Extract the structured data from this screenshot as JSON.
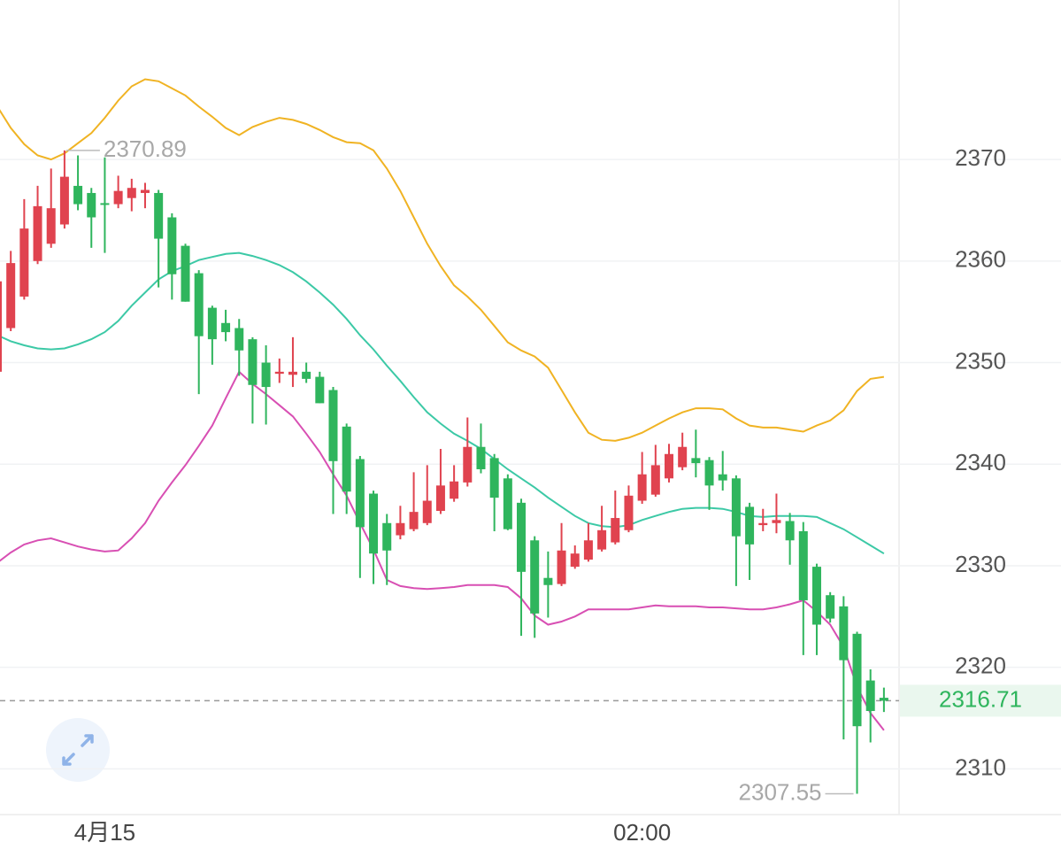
{
  "chart_data": {
    "type": "candlestick",
    "categories": [
      null,
      null,
      null,
      null,
      null,
      null,
      null,
      null,
      "4月15",
      null,
      null,
      null,
      null,
      null,
      null,
      null,
      null,
      null,
      null,
      null,
      null,
      null,
      null,
      null,
      null,
      null,
      null,
      null,
      null,
      null,
      null,
      null,
      null,
      null,
      null,
      null,
      null,
      null,
      null,
      null,
      null,
      null,
      null,
      null,
      null,
      null,
      null,
      null,
      "02:00",
      null,
      null,
      null,
      null,
      null,
      null,
      null,
      null,
      null,
      null,
      null,
      null,
      null,
      null,
      null,
      null,
      null,
      null
    ],
    "open": [
      2349.1,
      2353.4,
      2356.5,
      2360.0,
      2361.7,
      2363.6,
      2367.4,
      2366.7,
      2365.7,
      2365.6,
      2366.2,
      2366.7,
      2366.7,
      2364.3,
      2361.5,
      2358.8,
      2355.4,
      2353.9,
      2353.4,
      2352.3,
      2350.0,
      2348.9,
      2348.8,
      2349.1,
      2348.6,
      2347.3,
      2343.7,
      2340.5,
      2337.1,
      2334.2,
      2333.0,
      2333.6,
      2334.2,
      2335.4,
      2336.6,
      2338.2,
      2341.7,
      2340.6,
      2338.6,
      2336.2,
      2332.5,
      2328.8,
      2328.2,
      2329.9,
      2330.6,
      2331.6,
      2332.3,
      2333.5,
      2336.4,
      2337.0,
      2338.6,
      2339.7,
      2340.6,
      2340.4,
      2339.0,
      2338.6,
      2335.8,
      2334.0,
      2334.2,
      2334.4,
      2333.4,
      2329.9,
      2327.1,
      2326.0,
      2323.3,
      2318.7,
      2317.0
    ],
    "high": [
      2359.5,
      2361.0,
      2366.1,
      2367.4,
      2369.1,
      2370.89,
      2370.4,
      2367.2,
      2370.2,
      2368.4,
      2368.1,
      2367.7,
      2367.0,
      2364.7,
      2361.7,
      2359.1,
      2355.6,
      2355.2,
      2354.3,
      2352.5,
      2351.7,
      2350.4,
      2352.5,
      2350.0,
      2349.1,
      2347.6,
      2344.0,
      2340.8,
      2337.4,
      2335.1,
      2335.9,
      2339.2,
      2339.9,
      2341.5,
      2339.9,
      2344.6,
      2344.0,
      2341.0,
      2339.0,
      2336.6,
      2332.9,
      2331.4,
      2334.2,
      2332.0,
      2334.2,
      2335.9,
      2337.4,
      2337.9,
      2341.2,
      2341.9,
      2342.0,
      2343.1,
      2343.4,
      2340.7,
      2341.3,
      2338.9,
      2336.2,
      2335.6,
      2337.1,
      2335.2,
      2334.3,
      2330.2,
      2327.4,
      2327.0,
      2323.5,
      2319.8,
      2318.0
    ],
    "low": [
      2348.6,
      2353.1,
      2356.2,
      2359.7,
      2361.3,
      2363.2,
      2365.0,
      2361.3,
      2360.8,
      2365.2,
      2364.9,
      2365.2,
      2357.4,
      2356.2,
      2356.0,
      2346.9,
      2349.8,
      2352.1,
      2348.7,
      2344.0,
      2343.9,
      2348.0,
      2347.6,
      2348.0,
      2346.0,
      2335.1,
      2335.1,
      2328.8,
      2328.2,
      2328.1,
      2332.6,
      2333.4,
      2334.0,
      2335.1,
      2336.3,
      2337.8,
      2339.1,
      2333.4,
      2333.5,
      2323.1,
      2322.9,
      2324.9,
      2328.0,
      2329.7,
      2330.4,
      2331.4,
      2332.1,
      2333.3,
      2336.1,
      2336.8,
      2338.2,
      2339.4,
      2338.7,
      2335.5,
      2337.4,
      2328.0,
      2328.6,
      2333.4,
      2333.2,
      2330.1,
      2321.2,
      2321.2,
      2324.4,
      2312.9,
      2307.55,
      2312.6,
      2315.6
    ],
    "close": [
      2358.0,
      2359.8,
      2363.2,
      2365.4,
      2365.2,
      2368.3,
      2365.6,
      2364.3,
      2365.6,
      2366.9,
      2367.2,
      2367.0,
      2362.2,
      2358.7,
      2356.0,
      2352.6,
      2352.3,
      2353.0,
      2351.2,
      2347.8,
      2347.6,
      2349.1,
      2349.1,
      2348.4,
      2346.0,
      2340.3,
      2337.3,
      2333.8,
      2331.2,
      2331.5,
      2334.2,
      2335.3,
      2336.4,
      2337.9,
      2338.3,
      2341.7,
      2339.5,
      2336.7,
      2333.6,
      2329.4,
      2325.3,
      2328.1,
      2331.5,
      2331.2,
      2332.5,
      2333.5,
      2334.7,
      2336.9,
      2339.0,
      2339.9,
      2341.0,
      2341.7,
      2340.1,
      2337.9,
      2338.4,
      2332.9,
      2332.1,
      2334.2,
      2334.5,
      2332.5,
      2326.6,
      2324.2,
      2324.8,
      2320.7,
      2314.2,
      2315.7,
      2316.71
    ],
    "up_color": "#e0434f",
    "down_color": "#2fb55d",
    "series": [
      {
        "color": "#f0b323",
        "values": [
          2375.2,
          2373.1,
          2371.5,
          2370.4,
          2370.0,
          2370.6,
          2371.6,
          2372.6,
          2374.1,
          2375.8,
          2377.2,
          2377.9,
          2377.7,
          2377.0,
          2376.3,
          2375.2,
          2374.2,
          2373.1,
          2372.4,
          2373.2,
          2373.7,
          2374.1,
          2373.9,
          2373.5,
          2372.9,
          2372.2,
          2371.7,
          2371.6,
          2370.9,
          2369.1,
          2366.9,
          2364.3,
          2361.7,
          2359.5,
          2357.6,
          2356.5,
          2355.2,
          2353.6,
          2352.0,
          2351.2,
          2350.6,
          2349.5,
          2347.3,
          2345.1,
          2343.1,
          2342.4,
          2342.3,
          2342.6,
          2343.1,
          2343.8,
          2344.5,
          2345.1,
          2345.5,
          2345.5,
          2345.4,
          2344.5,
          2343.8,
          2343.6,
          2343.6,
          2343.4,
          2343.2,
          2343.8,
          2344.3,
          2345.3,
          2347.2,
          2348.4,
          2348.6
        ]
      },
      {
        "color": "#3cc9a6",
        "values": [
          2352.7,
          2352.1,
          2351.7,
          2351.4,
          2351.3,
          2351.4,
          2351.8,
          2352.3,
          2353.0,
          2354.1,
          2355.6,
          2356.9,
          2358.2,
          2359.0,
          2359.5,
          2360.1,
          2360.4,
          2360.7,
          2360.8,
          2360.5,
          2360.1,
          2359.6,
          2358.9,
          2358.0,
          2356.9,
          2355.7,
          2354.3,
          2352.7,
          2351.3,
          2349.7,
          2348.2,
          2346.6,
          2345.1,
          2344.0,
          2343.0,
          2342.3,
          2341.5,
          2340.5,
          2339.5,
          2338.6,
          2337.7,
          2336.7,
          2335.8,
          2334.9,
          2334.2,
          2333.9,
          2333.8,
          2334.0,
          2334.5,
          2334.9,
          2335.3,
          2335.6,
          2335.7,
          2335.7,
          2335.6,
          2335.3,
          2334.9,
          2334.8,
          2334.9,
          2334.9,
          2334.9,
          2334.8,
          2334.2,
          2333.6,
          2332.8,
          2332.0,
          2331.2
        ]
      },
      {
        "color": "#d84fb3",
        "values": [
          2330.3,
          2331.3,
          2332.1,
          2332.5,
          2332.7,
          2332.3,
          2331.9,
          2331.6,
          2331.4,
          2331.5,
          2332.7,
          2334.2,
          2336.4,
          2338.2,
          2339.9,
          2341.8,
          2343.8,
          2346.5,
          2349.1,
          2347.9,
          2346.9,
          2345.8,
          2344.7,
          2343.0,
          2341.2,
          2339.0,
          2336.9,
          2334.2,
          2331.6,
          2328.6,
          2328.0,
          2327.8,
          2327.7,
          2327.8,
          2327.9,
          2328.1,
          2328.1,
          2328.1,
          2327.9,
          2326.8,
          2325.1,
          2324.2,
          2324.5,
          2325.0,
          2325.7,
          2325.7,
          2325.7,
          2325.7,
          2325.9,
          2326.1,
          2326.0,
          2326.0,
          2326.0,
          2325.9,
          2325.9,
          2325.8,
          2325.7,
          2325.7,
          2325.9,
          2326.2,
          2326.6,
          2325.5,
          2324.2,
          2322.0,
          2318.1,
          2315.5,
          2313.8
        ]
      }
    ],
    "ylim": [
      2305.5,
      2385.7
    ],
    "yticks": [
      2310,
      2320,
      2330,
      2340,
      2350,
      2360,
      2370
    ],
    "grid": true
  }
}
